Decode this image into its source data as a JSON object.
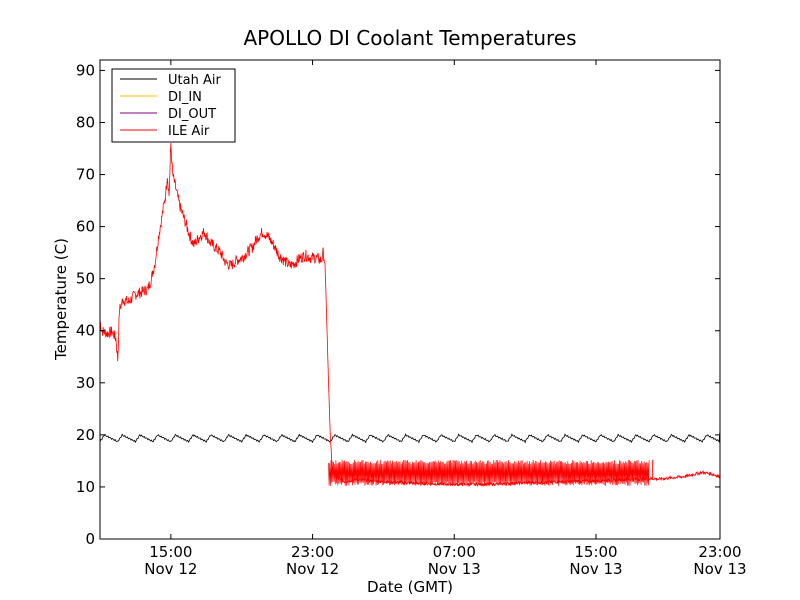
{
  "chart_data": {
    "type": "line",
    "title": "APOLLO DI Coolant Temperatures",
    "xlabel": "Date (GMT)",
    "ylabel": "Temperature (C)",
    "xlim": [
      0,
      35
    ],
    "ylim": [
      0,
      92
    ],
    "x_unit": "hours since Nov 12 11:00 GMT",
    "yticks": [
      0,
      10,
      20,
      30,
      40,
      50,
      60,
      70,
      80,
      90
    ],
    "xticks": [
      {
        "x": 4,
        "time": "15:00",
        "date": "Nov 12"
      },
      {
        "x": 12,
        "time": "23:00",
        "date": "Nov 12"
      },
      {
        "x": 20,
        "time": "07:00",
        "date": "Nov 13"
      },
      {
        "x": 28,
        "time": "15:00",
        "date": "Nov 13"
      },
      {
        "x": 36,
        "time": "23:00",
        "date": "Nov 13"
      }
    ],
    "legend_position": "top-left",
    "grid": false,
    "series": [
      {
        "name": "Utah Air",
        "color": "#000000",
        "visible": true
      },
      {
        "name": "DI_IN",
        "color": "#ffbf00",
        "visible": false
      },
      {
        "name": "DI_OUT",
        "color": "#800080",
        "visible": false
      },
      {
        "name": "ILE Air",
        "color": "#ff0000",
        "visible": true
      }
    ],
    "utah_air": {
      "x_start": 0,
      "x_end": 35,
      "baseline": 19.5,
      "amplitude": 0.8,
      "end_value": 21
    },
    "ile_air": {
      "points": [
        [
          0.0,
          42
        ],
        [
          0.1,
          40
        ],
        [
          0.4,
          39.5
        ],
        [
          0.7,
          39.8
        ],
        [
          0.9,
          38.5
        ],
        [
          1.0,
          34.5
        ],
        [
          1.1,
          44
        ],
        [
          1.3,
          46
        ],
        [
          1.6,
          45.5
        ],
        [
          2.0,
          47
        ],
        [
          2.4,
          47.5
        ],
        [
          2.7,
          48
        ],
        [
          2.9,
          50
        ],
        [
          3.1,
          53
        ],
        [
          3.3,
          58
        ],
        [
          3.5,
          62
        ],
        [
          3.7,
          66
        ],
        [
          3.8,
          70
        ],
        [
          3.9,
          66
        ],
        [
          4.0,
          76
        ],
        [
          4.1,
          70
        ],
        [
          4.3,
          67
        ],
        [
          4.5,
          64
        ],
        [
          4.7,
          62
        ],
        [
          4.9,
          60
        ],
        [
          5.1,
          58
        ],
        [
          5.3,
          56.5
        ],
        [
          5.6,
          58
        ],
        [
          5.9,
          59
        ],
        [
          6.2,
          57
        ],
        [
          6.5,
          56
        ],
        [
          6.8,
          55
        ],
        [
          7.1,
          53
        ],
        [
          7.4,
          52.5
        ],
        [
          7.7,
          53.5
        ],
        [
          8.0,
          54
        ],
        [
          8.3,
          55
        ],
        [
          8.6,
          56
        ],
        [
          8.9,
          58
        ],
        [
          9.2,
          59
        ],
        [
          9.5,
          58
        ],
        [
          9.8,
          56.5
        ],
        [
          10.1,
          54.5
        ],
        [
          10.4,
          53.5
        ],
        [
          10.7,
          52.5
        ],
        [
          11.0,
          53
        ],
        [
          11.3,
          54
        ],
        [
          11.6,
          54.5
        ],
        [
          11.9,
          54
        ],
        [
          12.2,
          54
        ],
        [
          12.5,
          53.5
        ],
        [
          12.6,
          55
        ],
        [
          12.7,
          53
        ],
        [
          12.8,
          42
        ],
        [
          12.9,
          30
        ],
        [
          13.0,
          20
        ],
        [
          13.1,
          14
        ],
        [
          13.3,
          12
        ],
        [
          13.8,
          11
        ],
        [
          14.5,
          11.5
        ],
        [
          16,
          11
        ],
        [
          18,
          10.7
        ],
        [
          20,
          10.5
        ],
        [
          22,
          10.5
        ],
        [
          24,
          10.8
        ],
        [
          26,
          11
        ],
        [
          28,
          11.2
        ],
        [
          30,
          11.5
        ],
        [
          31.3,
          11.6
        ],
        [
          31.5,
          11.5
        ],
        [
          33,
          12
        ],
        [
          34,
          12.8
        ],
        [
          34.5,
          12.5
        ],
        [
          35,
          12
        ]
      ],
      "spike_region": {
        "x_start": 12.9,
        "x_end": 31.0,
        "top": 15.2,
        "bottom": 10.2
      },
      "late_spike": {
        "x": 31.2,
        "top": 15.2,
        "bottom": 11.5
      }
    }
  }
}
